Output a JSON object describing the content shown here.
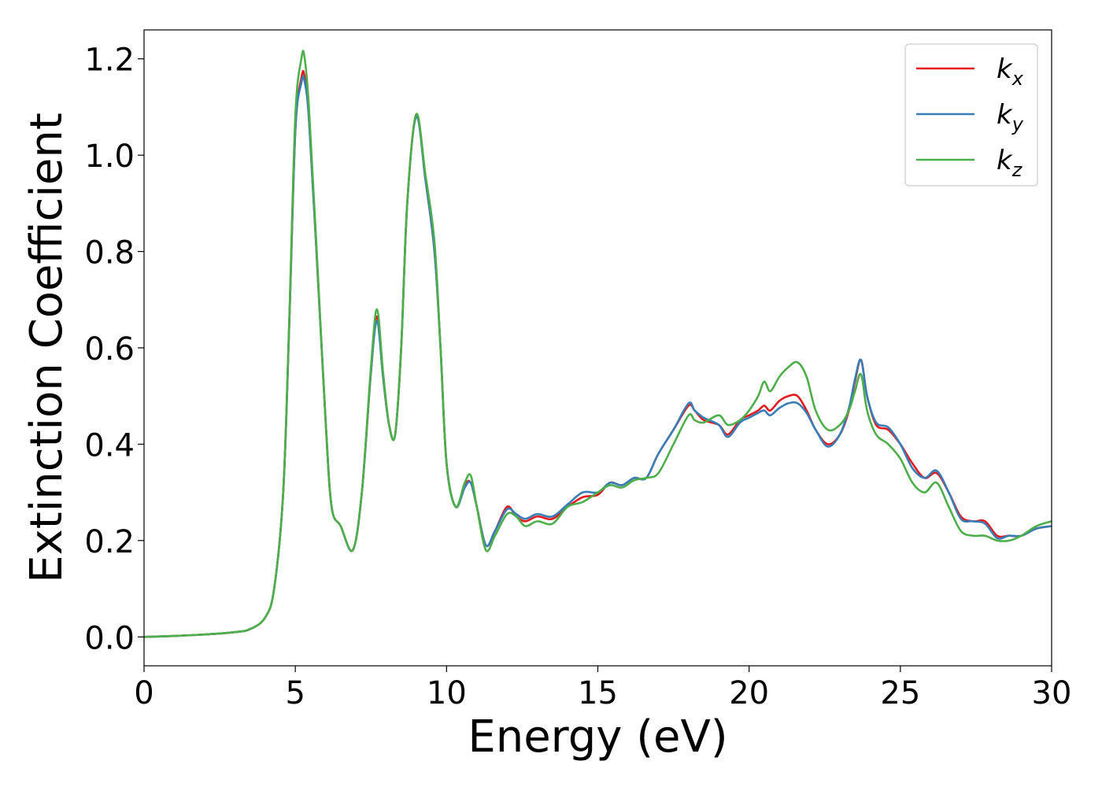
{
  "chart_data": {
    "type": "line",
    "title": "",
    "xlabel": "Energy (eV)",
    "ylabel": "Extinction Coefficient",
    "xlim": [
      0,
      30
    ],
    "ylim": [
      -0.06,
      1.26
    ],
    "xticks": [
      0,
      5,
      10,
      15,
      20,
      25,
      30
    ],
    "xtick_labels": [
      "0",
      "5",
      "10",
      "15",
      "20",
      "25",
      "30"
    ],
    "yticks": [
      0.0,
      0.2,
      0.4,
      0.6,
      0.8,
      1.0,
      1.2
    ],
    "ytick_labels": [
      "0.0",
      "0.2",
      "0.4",
      "0.6",
      "0.8",
      "1.0",
      "1.2"
    ],
    "grid": false,
    "legend_position": "top-right",
    "x": [
      0,
      1,
      2,
      3,
      3.5,
      4,
      4.3,
      4.6,
      4.8,
      5.0,
      5.2,
      5.3,
      5.45,
      5.7,
      6.0,
      6.2,
      6.5,
      6.9,
      7.2,
      7.5,
      7.7,
      7.9,
      8.1,
      8.3,
      8.5,
      8.7,
      9.0,
      9.3,
      9.6,
      9.8,
      10.0,
      10.3,
      10.6,
      10.8,
      11.0,
      11.3,
      11.6,
      12.0,
      12.3,
      12.6,
      13.0,
      13.5,
      14.0,
      14.5,
      15.0,
      15.4,
      15.8,
      16.2,
      16.6,
      17.0,
      17.5,
      18.0,
      18.2,
      18.5,
      19.0,
      19.3,
      19.7,
      20.0,
      20.3,
      20.5,
      20.7,
      21.0,
      21.3,
      21.6,
      21.9,
      22.2,
      22.6,
      23.0,
      23.3,
      23.5,
      23.7,
      23.9,
      24.2,
      24.6,
      25.0,
      25.4,
      25.8,
      26.2,
      26.6,
      27.0,
      27.4,
      27.8,
      28.2,
      28.6,
      29.0,
      29.5,
      30.0
    ],
    "series": [
      {
        "name": "x",
        "color": "#e41a1c",
        "values": [
          0.0,
          0.002,
          0.005,
          0.01,
          0.016,
          0.04,
          0.1,
          0.3,
          0.65,
          1.05,
          1.16,
          1.165,
          1.08,
          0.8,
          0.45,
          0.27,
          0.23,
          0.18,
          0.3,
          0.55,
          0.665,
          0.54,
          0.44,
          0.42,
          0.6,
          0.9,
          1.085,
          0.95,
          0.8,
          0.6,
          0.36,
          0.27,
          0.315,
          0.32,
          0.27,
          0.19,
          0.22,
          0.27,
          0.25,
          0.24,
          0.25,
          0.245,
          0.27,
          0.29,
          0.295,
          0.32,
          0.315,
          0.33,
          0.33,
          0.38,
          0.43,
          0.48,
          0.47,
          0.45,
          0.44,
          0.42,
          0.45,
          0.46,
          0.47,
          0.48,
          0.47,
          0.49,
          0.5,
          0.5,
          0.47,
          0.43,
          0.4,
          0.42,
          0.47,
          0.53,
          0.575,
          0.5,
          0.44,
          0.43,
          0.4,
          0.36,
          0.33,
          0.34,
          0.3,
          0.25,
          0.24,
          0.24,
          0.21,
          0.21,
          0.21,
          0.225,
          0.23
        ]
      },
      {
        "name": "y",
        "color": "#377eb8",
        "values": [
          0.0,
          0.002,
          0.005,
          0.01,
          0.016,
          0.04,
          0.1,
          0.3,
          0.65,
          1.05,
          1.15,
          1.155,
          1.075,
          0.8,
          0.45,
          0.27,
          0.23,
          0.18,
          0.3,
          0.55,
          0.655,
          0.54,
          0.44,
          0.42,
          0.6,
          0.9,
          1.08,
          0.95,
          0.8,
          0.6,
          0.36,
          0.27,
          0.31,
          0.32,
          0.27,
          0.19,
          0.22,
          0.265,
          0.255,
          0.245,
          0.255,
          0.25,
          0.275,
          0.3,
          0.3,
          0.32,
          0.315,
          0.33,
          0.33,
          0.38,
          0.43,
          0.485,
          0.47,
          0.455,
          0.44,
          0.415,
          0.445,
          0.455,
          0.465,
          0.47,
          0.46,
          0.475,
          0.485,
          0.485,
          0.465,
          0.43,
          0.395,
          0.42,
          0.475,
          0.535,
          0.575,
          0.5,
          0.445,
          0.435,
          0.4,
          0.35,
          0.33,
          0.345,
          0.3,
          0.245,
          0.24,
          0.235,
          0.205,
          0.21,
          0.21,
          0.225,
          0.23
        ]
      },
      {
        "name": "z",
        "color": "#4daf4a",
        "values": [
          0.0,
          0.002,
          0.005,
          0.01,
          0.016,
          0.04,
          0.1,
          0.3,
          0.66,
          1.08,
          1.2,
          1.205,
          1.1,
          0.81,
          0.45,
          0.27,
          0.23,
          0.18,
          0.3,
          0.56,
          0.68,
          0.55,
          0.44,
          0.42,
          0.6,
          0.9,
          1.085,
          0.96,
          0.82,
          0.6,
          0.36,
          0.27,
          0.32,
          0.335,
          0.27,
          0.18,
          0.21,
          0.255,
          0.25,
          0.23,
          0.24,
          0.235,
          0.27,
          0.28,
          0.3,
          0.315,
          0.31,
          0.325,
          0.33,
          0.34,
          0.4,
          0.46,
          0.45,
          0.445,
          0.46,
          0.44,
          0.45,
          0.47,
          0.5,
          0.53,
          0.51,
          0.54,
          0.56,
          0.57,
          0.54,
          0.47,
          0.43,
          0.44,
          0.47,
          0.51,
          0.545,
          0.47,
          0.42,
          0.4,
          0.37,
          0.32,
          0.3,
          0.32,
          0.27,
          0.22,
          0.21,
          0.21,
          0.2,
          0.2,
          0.21,
          0.23,
          0.24
        ]
      }
    ],
    "legend": [
      {
        "base": "k",
        "sub": "x"
      },
      {
        "base": "k",
        "sub": "y"
      },
      {
        "base": "k",
        "sub": "z"
      }
    ]
  }
}
